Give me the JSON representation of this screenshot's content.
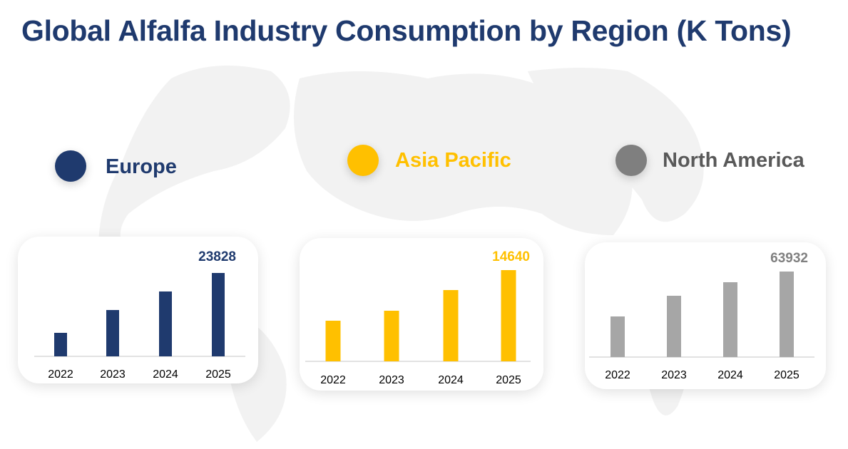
{
  "title": "Global Alfalfa Industry Consumption by Region (K Tons)",
  "chart_data": [
    {
      "type": "bar",
      "name": "Europe",
      "color": "#1f3a6e",
      "categories": [
        "2022",
        "2023",
        "2024",
        "2025"
      ],
      "values": [
        6720,
        13240,
        18540,
        23828
      ],
      "data_labels": {
        "2025": "23828"
      },
      "grid": false
    },
    {
      "type": "bar",
      "name": "Asia Pacific",
      "color": "#ffc000",
      "categories": [
        "2022",
        "2023",
        "2024",
        "2025"
      ],
      "values": [
        6520,
        8120,
        11440,
        14640
      ],
      "data_labels": {
        "2025": "14640"
      },
      "grid": false
    },
    {
      "type": "bar",
      "name": "North America",
      "color": "#a6a6a6",
      "label_color": "#808080",
      "categories": [
        "2022",
        "2023",
        "2024",
        "2025"
      ],
      "values": [
        30370,
        45820,
        55940,
        63932
      ],
      "data_labels": {
        "2025": "63932"
      },
      "grid": false
    }
  ]
}
